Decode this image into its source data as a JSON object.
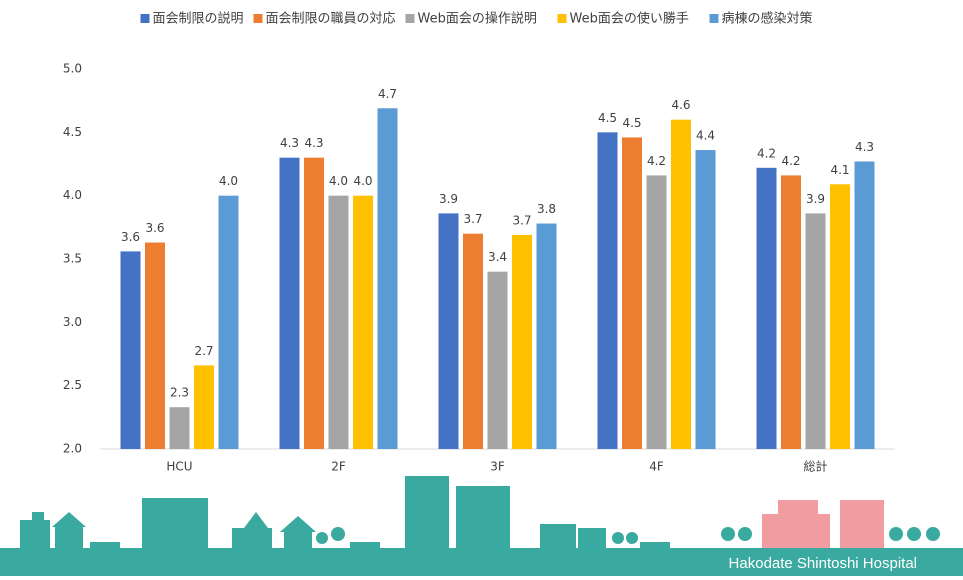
{
  "chart_data": {
    "type": "bar",
    "categories": [
      "HCU",
      "2F",
      "3F",
      "4F",
      "総計"
    ],
    "series": [
      {
        "name": "面会制限の説明",
        "color": "#4472c4",
        "values": [
          3.56,
          4.3,
          3.86,
          4.5,
          4.22
        ],
        "value_labels": [
          "3.6",
          "4.3",
          "3.9",
          "4.5",
          "4.2"
        ]
      },
      {
        "name": "面会制限の職員の対応",
        "color": "#ed7d31",
        "values": [
          3.63,
          4.3,
          3.7,
          4.46,
          4.16
        ],
        "value_labels": [
          "3.6",
          "4.3",
          "3.7",
          "4.5",
          "4.2"
        ]
      },
      {
        "name": "Web面会の操作説明",
        "color": "#a5a5a5",
        "values": [
          2.33,
          4.0,
          3.4,
          4.16,
          3.86
        ],
        "value_labels": [
          "2.3",
          "4.0",
          "3.4",
          "4.2",
          "3.9"
        ]
      },
      {
        "name": "Web面会の使い勝手",
        "color": "#ffc000",
        "values": [
          2.66,
          4.0,
          3.69,
          4.6,
          4.09
        ],
        "value_labels": [
          "2.7",
          "4.0",
          "3.7",
          "4.6",
          "4.1"
        ]
      },
      {
        "name": "病棟の感染対策",
        "color": "#5b9bd5",
        "values": [
          4.0,
          4.69,
          3.78,
          4.36,
          4.27
        ],
        "value_labels": [
          "4.0",
          "4.7",
          "3.8",
          "4.4",
          "4.3"
        ]
      }
    ],
    "ylim": [
      2.0,
      5.0
    ],
    "yticks": [
      {
        "value": 2,
        "label": "2.0"
      },
      2.5,
      {
        "value": 3,
        "label": "3.0"
      },
      3.5,
      {
        "value": 4,
        "label": "4.0"
      },
      4.5,
      {
        "value": 5,
        "label": "5.0"
      }
    ],
    "grid": false,
    "legend": "top"
  },
  "footer": {
    "text": "Hakodate Shintoshi Hospital"
  }
}
